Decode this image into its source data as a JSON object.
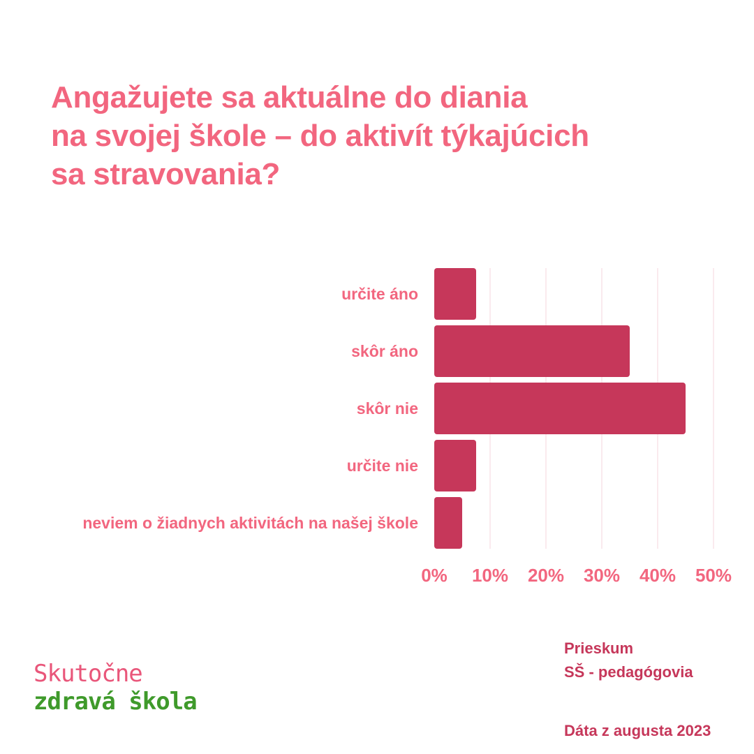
{
  "title": {
    "lines": [
      "Angažujete sa aktuálne do diania",
      "na svojej škole – do aktivít týkajúcich",
      "sa stravovania?"
    ]
  },
  "colors": {
    "title": "#f2667f",
    "bar": "#c6375a",
    "category_label": "#f2667f",
    "tick_label": "#f2667f",
    "grid": "#f6d6de",
    "footer_text": "#c6375a",
    "logo_line1": "#e9567a",
    "logo_line2": "#3f9a2b"
  },
  "chart_data": {
    "type": "bar",
    "orientation": "horizontal",
    "categories": [
      "určite áno",
      "skôr áno",
      "skôr nie",
      "určite nie",
      "neviem o žiadnych aktivitách na našej škole"
    ],
    "values": [
      7.5,
      35,
      45,
      7.5,
      5
    ],
    "value_unit": "%",
    "xlim": [
      0,
      50
    ],
    "xticks": [
      0,
      10,
      20,
      30,
      40,
      50
    ],
    "xtick_labels": [
      "0%",
      "10%",
      "20%",
      "30%",
      "40%",
      "50%"
    ],
    "grid": true
  },
  "footer": {
    "survey_lines": [
      "Prieskum",
      "SŠ - pedagógovia"
    ],
    "date": "Dáta z augusta 2023"
  },
  "logo": {
    "line1": "Skutočne",
    "line2": "zdravá škola"
  }
}
